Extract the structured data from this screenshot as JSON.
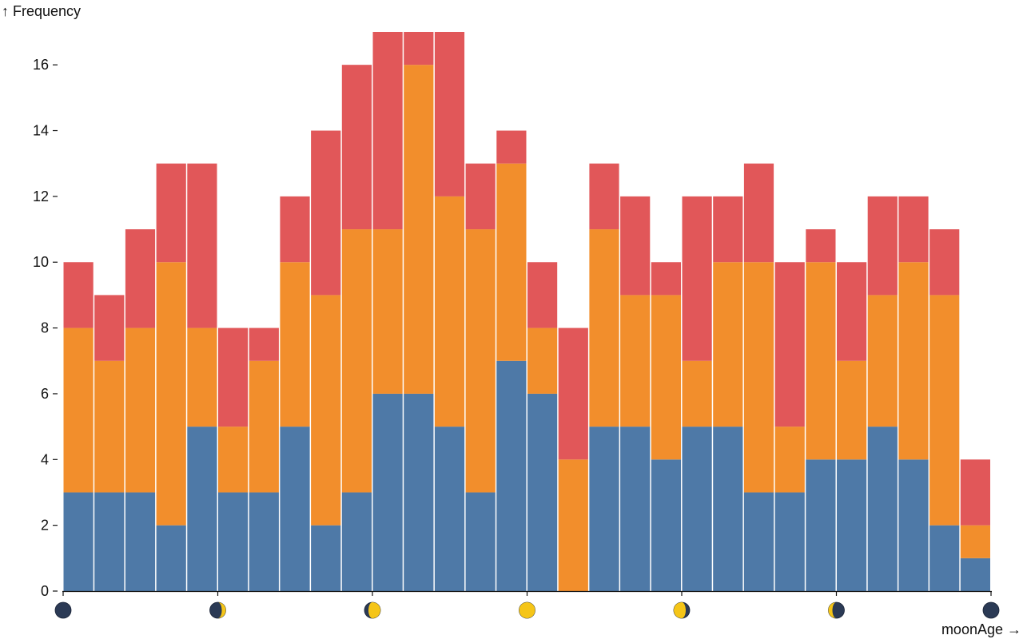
{
  "chart_data": {
    "type": "bar",
    "stacked": true,
    "ylabel": "↑ Frequency",
    "xlabel": "moonAge →",
    "ylim": [
      0,
      17
    ],
    "yticks": [
      0,
      2,
      4,
      6,
      8,
      10,
      12,
      14,
      16
    ],
    "grid": false,
    "legend": "none",
    "x_tick_icons": [
      "new-moon-icon",
      "waxing-crescent-icon",
      "waxing-gibbous-icon",
      "full-moon-icon",
      "waning-gibbous-icon",
      "waning-crescent-icon",
      "new-moon-icon"
    ],
    "x_tick_illumination": [
      0,
      0.25,
      0.75,
      1,
      -0.75,
      -0.25,
      0
    ],
    "colors": [
      "#4e79a7",
      "#f28e2c",
      "#e15759"
    ],
    "bins": 30,
    "series": [
      {
        "values": [
          3,
          3,
          3,
          2,
          5,
          3,
          3,
          5,
          2,
          3,
          6,
          6,
          5,
          3,
          7,
          6,
          0,
          5,
          5,
          4,
          5,
          5,
          3,
          3,
          4,
          4,
          5,
          4,
          2,
          1
        ]
      },
      {
        "values": [
          5,
          4,
          5,
          8,
          3,
          2,
          4,
          5,
          7,
          8,
          5,
          10,
          7,
          8,
          6,
          2,
          4,
          6,
          4,
          5,
          2,
          5,
          7,
          2,
          6,
          3,
          4,
          6,
          7,
          1
        ]
      },
      {
        "values": [
          2,
          2,
          3,
          3,
          5,
          3,
          1,
          2,
          5,
          5,
          6,
          1,
          5,
          2,
          1,
          2,
          4,
          2,
          3,
          1,
          5,
          2,
          3,
          5,
          1,
          3,
          3,
          2,
          2,
          2
        ]
      }
    ]
  }
}
